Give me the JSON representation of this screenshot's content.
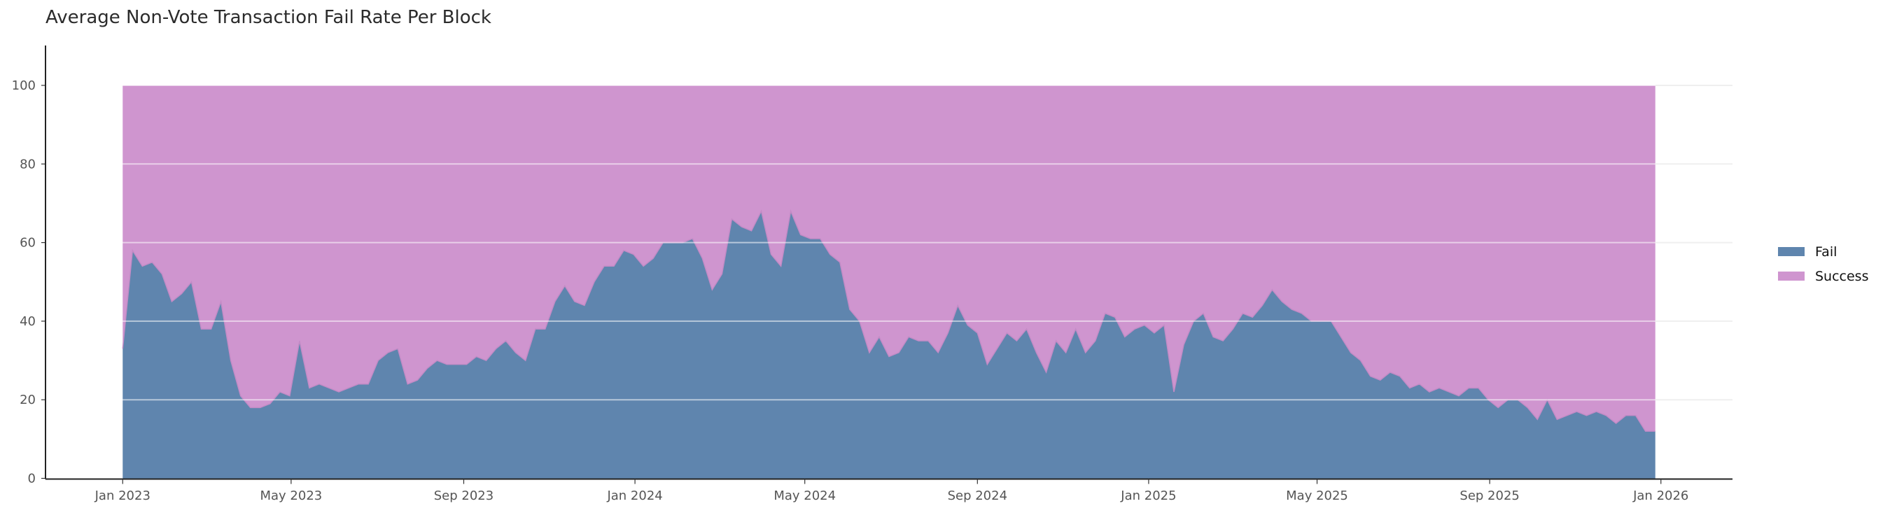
{
  "chart_data": {
    "type": "area",
    "stacked": true,
    "title": "Average Non-Vote Transaction Fail Rate Per Block",
    "xlabel": "",
    "ylabel": "",
    "ylim": [
      0,
      110
    ],
    "xlim": [
      "2022-11-07",
      "2026-02-21"
    ],
    "grid": true,
    "legend_position": "right",
    "y_ticks": [
      "0",
      "20",
      "40",
      "60",
      "80",
      "100"
    ],
    "x_ticks": [
      {
        "date": "2023-01-01",
        "label": "Jan 2023"
      },
      {
        "date": "2023-05-01",
        "label": "May 2023"
      },
      {
        "date": "2023-09-01",
        "label": "Sep 2023"
      },
      {
        "date": "2024-01-01",
        "label": "Jan 2024"
      },
      {
        "date": "2024-05-01",
        "label": "May 2024"
      },
      {
        "date": "2024-09-01",
        "label": "Sep 2024"
      },
      {
        "date": "2025-01-01",
        "label": "Jan 2025"
      },
      {
        "date": "2025-05-01",
        "label": "May 2025"
      },
      {
        "date": "2025-09-01",
        "label": "Sep 2025"
      },
      {
        "date": "2026-01-01",
        "label": "Jan 2026"
      }
    ],
    "x": [
      "2023-01-01",
      "2023-01-08",
      "2023-01-15",
      "2023-01-22",
      "2023-01-29",
      "2023-02-05",
      "2023-02-12",
      "2023-02-19",
      "2023-02-26",
      "2023-03-05",
      "2023-03-12",
      "2023-03-19",
      "2023-03-26",
      "2023-04-02",
      "2023-04-09",
      "2023-04-16",
      "2023-04-23",
      "2023-04-30",
      "2023-05-07",
      "2023-05-14",
      "2023-05-21",
      "2023-05-28",
      "2023-06-04",
      "2023-06-11",
      "2023-06-18",
      "2023-06-25",
      "2023-07-02",
      "2023-07-09",
      "2023-07-16",
      "2023-07-23",
      "2023-07-30",
      "2023-08-06",
      "2023-08-13",
      "2023-08-20",
      "2023-08-27",
      "2023-09-03",
      "2023-09-10",
      "2023-09-17",
      "2023-09-24",
      "2023-10-01",
      "2023-10-08",
      "2023-10-15",
      "2023-10-22",
      "2023-10-29",
      "2023-11-05",
      "2023-11-12",
      "2023-11-19",
      "2023-11-26",
      "2023-12-03",
      "2023-12-10",
      "2023-12-17",
      "2023-12-24",
      "2023-12-31",
      "2024-01-07",
      "2024-01-14",
      "2024-01-21",
      "2024-01-28",
      "2024-02-04",
      "2024-02-11",
      "2024-02-18",
      "2024-02-25",
      "2024-03-03",
      "2024-03-10",
      "2024-03-17",
      "2024-03-24",
      "2024-03-31",
      "2024-04-07",
      "2024-04-14",
      "2024-04-21",
      "2024-04-28",
      "2024-05-05",
      "2024-05-12",
      "2024-05-19",
      "2024-05-26",
      "2024-06-02",
      "2024-06-09",
      "2024-06-16",
      "2024-06-23",
      "2024-06-30",
      "2024-07-07",
      "2024-07-14",
      "2024-07-21",
      "2024-07-28",
      "2024-08-04",
      "2024-08-11",
      "2024-08-18",
      "2024-08-25",
      "2024-09-01",
      "2024-09-08",
      "2024-09-15",
      "2024-09-22",
      "2024-09-29",
      "2024-10-06",
      "2024-10-13",
      "2024-10-20",
      "2024-10-27",
      "2024-11-03",
      "2024-11-10",
      "2024-11-17",
      "2024-11-24",
      "2024-12-01",
      "2024-12-08",
      "2024-12-15",
      "2024-12-22",
      "2024-12-29",
      "2025-01-05",
      "2025-01-12",
      "2025-01-19",
      "2025-01-26",
      "2025-02-02",
      "2025-02-09",
      "2025-02-16",
      "2025-02-23",
      "2025-03-02",
      "2025-03-09",
      "2025-03-16",
      "2025-03-23",
      "2025-03-30",
      "2025-04-06",
      "2025-04-13",
      "2025-04-20",
      "2025-04-27",
      "2025-05-04",
      "2025-05-11",
      "2025-05-18",
      "2025-05-25",
      "2025-06-01",
      "2025-06-08",
      "2025-06-15",
      "2025-06-22",
      "2025-06-29",
      "2025-07-06",
      "2025-07-13",
      "2025-07-20",
      "2025-07-27",
      "2025-08-03",
      "2025-08-10",
      "2025-08-17",
      "2025-08-24",
      "2025-08-31",
      "2025-09-07",
      "2025-09-14",
      "2025-09-21",
      "2025-09-28",
      "2025-10-05",
      "2025-10-12",
      "2025-10-19",
      "2025-10-26",
      "2025-11-02",
      "2025-11-09",
      "2025-11-16",
      "2025-11-23",
      "2025-11-30",
      "2025-12-07",
      "2025-12-14",
      "2025-12-21",
      "2025-12-28"
    ],
    "series": [
      {
        "name": "Fail",
        "color": "#5f85ae",
        "values": [
          33,
          58,
          54,
          55,
          52,
          45,
          47,
          50,
          38,
          38,
          45,
          30,
          21,
          18,
          18,
          19,
          22,
          21,
          35,
          23,
          24,
          23,
          22,
          23,
          24,
          24,
          30,
          32,
          33,
          24,
          25,
          28,
          30,
          29,
          29,
          29,
          31,
          30,
          33,
          35,
          32,
          30,
          38,
          38,
          45,
          49,
          45,
          44,
          50,
          54,
          54,
          58,
          57,
          54,
          56,
          60,
          60,
          60,
          61,
          56,
          48,
          52,
          66,
          64,
          63,
          68,
          57,
          54,
          68,
          62,
          61,
          61,
          57,
          55,
          43,
          40,
          32,
          36,
          31,
          32,
          36,
          35,
          35,
          32,
          37,
          44,
          39,
          37,
          29,
          33,
          37,
          35,
          38,
          32,
          27,
          35,
          32,
          38,
          32,
          35,
          42,
          41,
          36,
          38,
          39,
          37,
          39,
          22,
          34,
          40,
          42,
          36,
          35,
          38,
          42,
          41,
          44,
          48,
          45,
          43,
          42,
          40,
          40,
          40,
          36,
          32,
          30,
          26,
          25,
          27,
          26,
          23,
          24,
          22,
          23,
          22,
          21,
          23,
          23,
          20,
          18,
          20,
          20,
          18,
          15,
          20,
          15,
          16,
          17,
          16,
          17,
          16,
          14,
          16,
          16,
          12,
          12
        ]
      },
      {
        "name": "Success",
        "color": "#cf95cf",
        "values": [
          67,
          42,
          46,
          45,
          48,
          55,
          53,
          50,
          62,
          62,
          55,
          70,
          79,
          82,
          82,
          81,
          78,
          79,
          65,
          77,
          76,
          77,
          78,
          77,
          76,
          76,
          70,
          68,
          67,
          76,
          75,
          72,
          70,
          71,
          71,
          71,
          69,
          70,
          67,
          65,
          68,
          70,
          62,
          62,
          55,
          51,
          55,
          56,
          50,
          46,
          46,
          42,
          43,
          46,
          44,
          40,
          40,
          40,
          39,
          44,
          52,
          48,
          34,
          36,
          37,
          32,
          43,
          46,
          32,
          38,
          39,
          39,
          43,
          45,
          57,
          60,
          68,
          64,
          69,
          68,
          64,
          65,
          65,
          68,
          63,
          56,
          61,
          63,
          71,
          67,
          63,
          65,
          62,
          68,
          73,
          65,
          68,
          62,
          68,
          65,
          58,
          59,
          64,
          62,
          61,
          63,
          61,
          78,
          66,
          60,
          58,
          64,
          65,
          62,
          58,
          59,
          56,
          52,
          55,
          57,
          58,
          60,
          60,
          60,
          64,
          68,
          70,
          74,
          75,
          73,
          74,
          77,
          76,
          78,
          77,
          78,
          79,
          77,
          77,
          80,
          82,
          80,
          80,
          82,
          85,
          80,
          85,
          84,
          83,
          84,
          83,
          84,
          86,
          84,
          84,
          88,
          88
        ]
      }
    ]
  }
}
